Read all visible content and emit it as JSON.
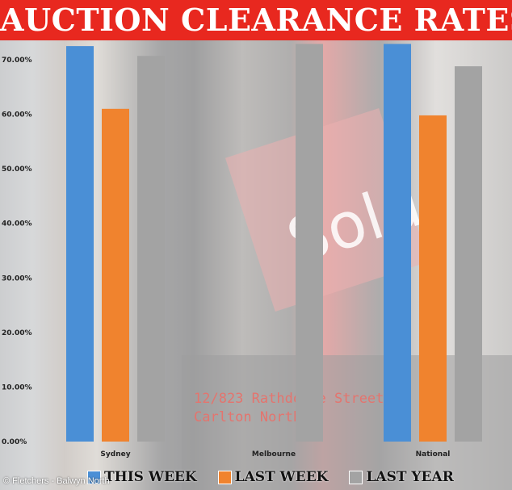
{
  "header": {
    "title": "AUCTION CLEARANCE RATES"
  },
  "photo": {
    "credit": "© Fletchers - Balwyn North",
    "sign_word": "Sold",
    "sign_address_line1": "12/823 Rathdowne Street,",
    "sign_address_line2": "Carlton North"
  },
  "colors": {
    "this_week": "#4a8fd6",
    "last_week": "#f0832e",
    "last_year": "#a3a3a3",
    "title_bg": "#e8281f"
  },
  "chart_data": {
    "type": "bar",
    "title": "AUCTION CLEARANCE RATES",
    "xlabel": "",
    "ylabel": "",
    "ylim": [
      0,
      70
    ],
    "yticks": [
      "0.00%",
      "10.00%",
      "20.00%",
      "30.00%",
      "40.00%",
      "50.00%",
      "60.00%",
      "70.00%"
    ],
    "categories": [
      "Sydney",
      "Melbourne",
      "National"
    ],
    "series": [
      {
        "name": "THIS WEEK",
        "values": [
          72.5,
          null,
          72.9
        ]
      },
      {
        "name": "LAST WEEK",
        "values": [
          61.0,
          null,
          59.8
        ]
      },
      {
        "name": "LAST YEAR",
        "values": [
          70.7,
          72.9,
          68.8
        ]
      }
    ],
    "grid": false,
    "legend": "bottom"
  }
}
